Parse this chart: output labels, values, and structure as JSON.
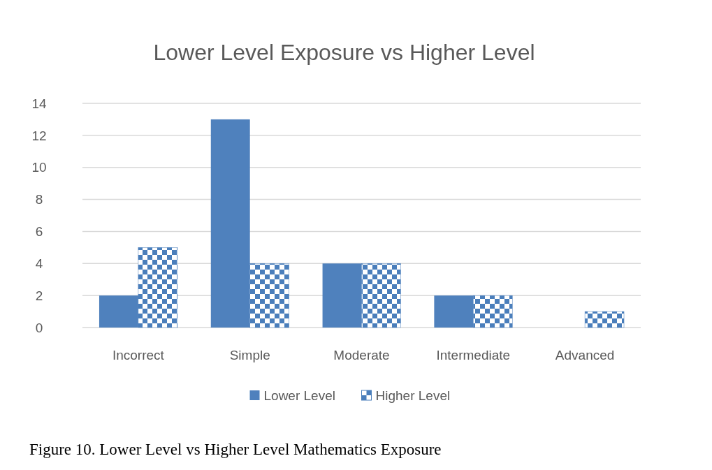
{
  "chart_data": {
    "type": "bar",
    "title": "Lower Level Exposure vs Higher Level",
    "categories": [
      "Incorrect",
      "Simple",
      "Moderate",
      "Intermediate",
      "Advanced"
    ],
    "series": [
      {
        "name": "Lower Level",
        "color": "#4f81bd",
        "values": [
          2,
          13,
          4,
          2,
          0
        ]
      },
      {
        "name": "Higher Level",
        "color": "#4a7ebb",
        "values": [
          5,
          4,
          4,
          2,
          1
        ]
      }
    ],
    "ylim": [
      0,
      14
    ],
    "yticks": [
      0,
      2,
      4,
      6,
      8,
      10,
      12,
      14
    ],
    "grid": "y",
    "legend": "bottom",
    "annotations": [
      "Figure 10. Lower Level vs Higher Level Mathematics Exposure"
    ]
  }
}
